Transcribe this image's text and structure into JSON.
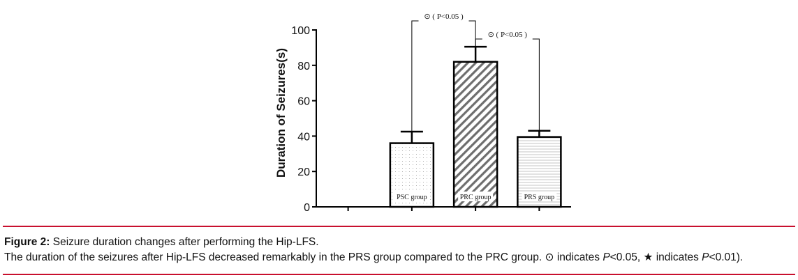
{
  "chart_data": {
    "type": "bar",
    "categories": [
      "",
      "PSC group",
      "PRC group",
      "PRS group"
    ],
    "values": [
      null,
      36,
      82,
      39.5
    ],
    "errors": [
      null,
      6.5,
      8.5,
      3.5
    ],
    "patterns": [
      "none",
      "dots",
      "diagonal-hatch",
      "horizontal-lines"
    ],
    "ylabel": "Duration of Seizures(s)",
    "ylim": [
      0,
      100
    ],
    "yticks": [
      "0",
      "20",
      "40",
      "60",
      "80",
      "100"
    ],
    "ytick_values": [
      0,
      20,
      40,
      60,
      80,
      100
    ],
    "annotations": [
      {
        "from": "PSC group",
        "to": "PRC group",
        "label": "⊙ ( P<0.05 )"
      },
      {
        "from": "PRC group",
        "to": "PRS group",
        "label": "⊙ ( P<0.05 )"
      }
    ]
  },
  "caption": {
    "figure_label": "Figure 2:",
    "title": "Seizure duration changes after performing the Hip-LFS.",
    "line2_text": "The duration of the seizures after Hip-LFS decreased remarkably in the PRS group compared to the PRC group. ⊙ indicates ",
    "p_symbol_1": "P",
    "p_value_1": "<0.05, ★ indicates ",
    "p_symbol_2": "P",
    "p_value_2": "<0.01)."
  },
  "colors": {
    "rule": "#c8102e",
    "bar_stroke": "#000000",
    "text": "#111111"
  }
}
